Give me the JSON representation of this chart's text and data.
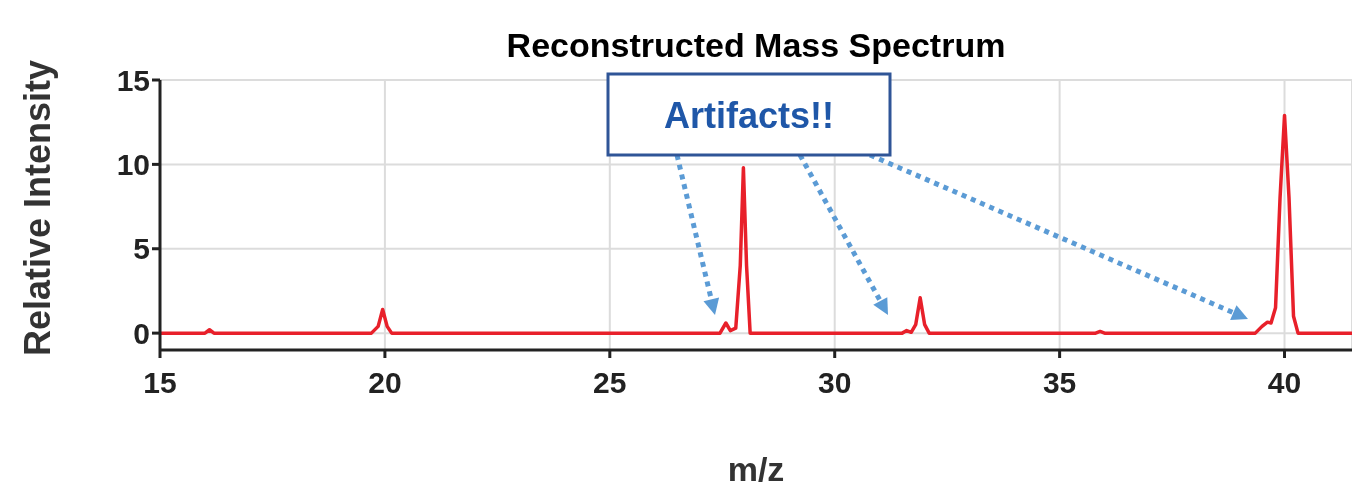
{
  "chart_data": {
    "type": "line",
    "title": "Reconstructed Mass Spectrum",
    "xlabel": "m/z",
    "ylabel": "Relative Intensity",
    "x": [
      15,
      16.0,
      16.1,
      16.2,
      19.7,
      19.85,
      19.95,
      20.05,
      20.15,
      27.45,
      27.58,
      27.68,
      27.8,
      27.9,
      27.97,
      28.04,
      28.12,
      31.5,
      31.6,
      31.7,
      31.8,
      31.9,
      32.0,
      32.1,
      35.8,
      35.9,
      36.0,
      39.35,
      39.5,
      39.62,
      39.7,
      39.8,
      39.9,
      40.0,
      40.1,
      40.2,
      40.3,
      41.5
    ],
    "series": [
      {
        "color": "#e8202a",
        "values": [
          0,
          0,
          0.2,
          0,
          0,
          0.4,
          1.4,
          0.4,
          0,
          0,
          0.6,
          0.15,
          0.3,
          4,
          9.8,
          4,
          0,
          0,
          0.15,
          0.05,
          0.5,
          2.1,
          0.5,
          0,
          0,
          0.1,
          0,
          0,
          0.4,
          0.65,
          0.6,
          1.5,
          8,
          12.9,
          8,
          1,
          0,
          0
        ]
      }
    ],
    "xlim": [
      15,
      41.5
    ],
    "xticks": [
      15,
      20,
      25,
      30,
      35,
      40
    ],
    "ylim": [
      -1,
      15
    ],
    "yticks": [
      0,
      5,
      10,
      15
    ],
    "grid": true,
    "marker": "none",
    "line_style": "solid",
    "annotations": [
      "Artifacts!!"
    ]
  }
}
